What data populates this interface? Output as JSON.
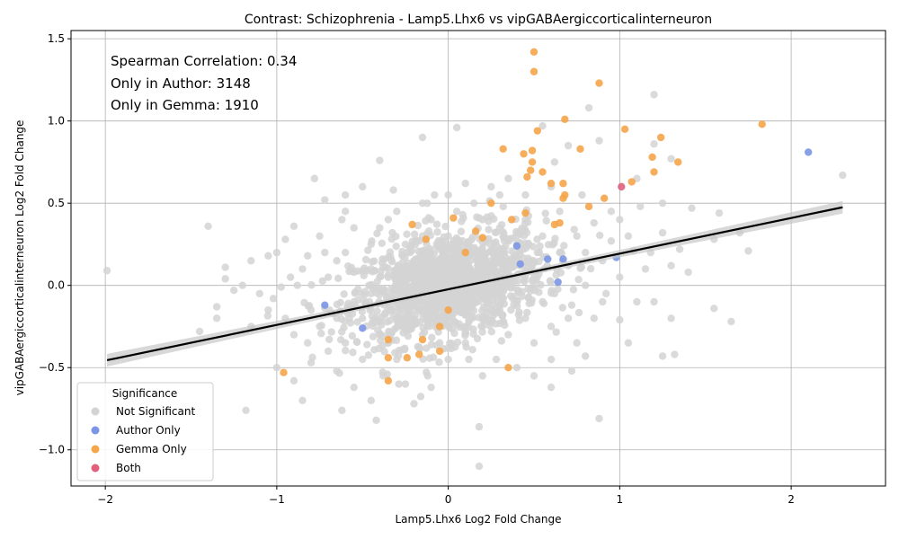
{
  "chart_data": {
    "type": "scatter",
    "title": "Contrast: Schizophrenia - Lamp5.Lhx6 vs vipGABAergiccorticalinterneuron",
    "xlabel": "Lamp5.Lhx6 Log2 Fold Change",
    "ylabel": "vipGABAergiccorticalinterneuron Log2 Fold Change",
    "xlim": [
      -2.2,
      2.55
    ],
    "ylim": [
      -1.22,
      1.55
    ],
    "xticks": [
      -2,
      -1,
      0,
      1,
      2
    ],
    "xtick_labels": [
      "−2",
      "−1",
      "0",
      "1",
      "2"
    ],
    "yticks": [
      -1.0,
      -0.5,
      0.0,
      0.5,
      1.0,
      1.5
    ],
    "ytick_labels": [
      "−1.0",
      "−0.5",
      "0.0",
      "0.5",
      "1.0",
      "1.5"
    ],
    "grid": true,
    "annotations": [
      "Spearman Correlation: 0.34",
      "Only in Author: 3148",
      "Only in Gemma: 1910"
    ],
    "regression_line": {
      "x": [
        -1.99,
        2.3
      ],
      "y": [
        -0.455,
        0.475
      ]
    },
    "legend": {
      "title": "Significance",
      "placement": "lower-left",
      "entries": [
        "Not Significant",
        "Author Only",
        "Gemma Only",
        "Both"
      ]
    },
    "series": [
      {
        "name": "Not Significant",
        "color": "#d3d3d3",
        "points": [
          [
            -1.99,
            0.09
          ],
          [
            -1.4,
            0.36
          ],
          [
            -1.45,
            -0.28
          ],
          [
            -1.3,
            0.11
          ],
          [
            -1.2,
            0.0
          ],
          [
            -1.18,
            -0.76
          ],
          [
            -1.05,
            0.18
          ],
          [
            -1.0,
            -0.5
          ],
          [
            -0.95,
            0.28
          ],
          [
            -0.9,
            0.36
          ],
          [
            -0.9,
            -0.58
          ],
          [
            -0.85,
            -0.7
          ],
          [
            -0.78,
            0.65
          ],
          [
            -0.72,
            0.52
          ],
          [
            -0.62,
            -0.76
          ],
          [
            -0.6,
            0.55
          ],
          [
            -0.4,
            0.76
          ],
          [
            -0.42,
            -0.82
          ],
          [
            -0.2,
            -0.72
          ],
          [
            -0.15,
            0.9
          ],
          [
            0.05,
            0.96
          ],
          [
            0.18,
            -0.86
          ],
          [
            0.18,
            -1.1
          ],
          [
            0.55,
            0.97
          ],
          [
            0.7,
            0.85
          ],
          [
            0.82,
            1.08
          ],
          [
            0.88,
            0.88
          ],
          [
            1.2,
            1.16
          ],
          [
            1.1,
            0.65
          ],
          [
            1.2,
            0.86
          ],
          [
            1.3,
            0.77
          ],
          [
            1.42,
            0.47
          ],
          [
            1.55,
            0.28
          ],
          [
            1.58,
            0.44
          ],
          [
            1.65,
            -0.22
          ],
          [
            1.7,
            0.32
          ],
          [
            1.75,
            0.21
          ],
          [
            1.55,
            -0.14
          ],
          [
            2.3,
            0.67
          ],
          [
            1.25,
            -0.43
          ],
          [
            1.32,
            -0.42
          ],
          [
            1.3,
            -0.2
          ],
          [
            1.0,
            -0.21
          ],
          [
            0.88,
            -0.81
          ],
          [
            0.72,
            -0.52
          ],
          [
            0.8,
            -0.43
          ],
          [
            0.6,
            -0.62
          ],
          [
            0.95,
            0.45
          ],
          [
            1.05,
            0.3
          ],
          [
            1.25,
            0.32
          ],
          [
            1.15,
            0.1
          ],
          [
            1.35,
            0.22
          ],
          [
            1.4,
            0.08
          ],
          [
            0.92,
            -0.05
          ],
          [
            1.1,
            -0.1
          ],
          [
            -1.1,
            -0.05
          ],
          [
            -1.25,
            -0.03
          ],
          [
            -1.35,
            -0.13
          ],
          [
            -0.8,
            -0.47
          ],
          [
            -0.65,
            -0.52
          ],
          [
            -0.5,
            0.6
          ],
          [
            -0.3,
            0.45
          ],
          [
            -0.25,
            -0.6
          ],
          [
            -0.1,
            -0.62
          ],
          [
            0.1,
            0.62
          ],
          [
            0.3,
            0.55
          ],
          [
            0.4,
            -0.5
          ],
          [
            0.2,
            -0.55
          ],
          [
            -0.55,
            0.35
          ],
          [
            -0.6,
            -0.35
          ],
          [
            -0.45,
            0.1
          ],
          [
            -0.35,
            -0.1
          ],
          [
            -0.25,
            0.25
          ],
          [
            -0.15,
            -0.3
          ],
          [
            -0.05,
            0.05
          ],
          [
            0.05,
            -0.15
          ],
          [
            0.15,
            0.2
          ],
          [
            0.25,
            -0.05
          ],
          [
            0.35,
            0.15
          ],
          [
            0.45,
            -0.2
          ],
          [
            0.55,
            0.3
          ],
          [
            0.6,
            -0.25
          ],
          [
            0.7,
            0.12
          ],
          [
            0.8,
            0.0
          ],
          [
            -0.7,
            0.05
          ],
          [
            -0.8,
            -0.15
          ],
          [
            -0.85,
            0.1
          ],
          [
            -0.6,
            0.2
          ],
          [
            -0.4,
            -0.3
          ],
          [
            -0.2,
            0.05
          ],
          [
            0.0,
            0.3
          ],
          [
            0.1,
            -0.35
          ],
          [
            0.3,
            0.35
          ],
          [
            0.4,
            -0.1
          ],
          [
            0.5,
            0.05
          ],
          [
            0.65,
            0.45
          ],
          [
            0.75,
            -0.35
          ],
          [
            -0.3,
            -0.45
          ],
          [
            -0.1,
            0.4
          ],
          [
            0.2,
            0.4
          ],
          [
            0.0,
            -0.45
          ],
          [
            -0.5,
            -0.2
          ],
          [
            -0.45,
            0.25
          ],
          [
            -0.3,
            0.1
          ],
          [
            -0.2,
            -0.15
          ],
          [
            -0.1,
            0.2
          ],
          [
            0.0,
            0.0
          ],
          [
            0.1,
            0.1
          ],
          [
            0.2,
            -0.2
          ],
          [
            0.3,
            0.05
          ],
          [
            0.4,
            0.25
          ],
          [
            0.5,
            -0.35
          ],
          [
            -1.0,
            0.2
          ],
          [
            -0.95,
            -0.2
          ],
          [
            -0.75,
            0.3
          ],
          [
            -0.7,
            -0.4
          ],
          [
            -0.65,
            0.15
          ],
          [
            -0.55,
            -0.1
          ],
          [
            -0.35,
            0.4
          ],
          [
            -0.25,
            -0.25
          ],
          [
            -0.15,
            0.3
          ],
          [
            -0.05,
            -0.2
          ],
          [
            0.05,
            0.25
          ],
          [
            0.15,
            -0.1
          ],
          [
            0.25,
            0.1
          ],
          [
            0.35,
            -0.3
          ],
          [
            0.45,
            0.4
          ],
          [
            0.55,
            -0.1
          ],
          [
            0.65,
            0.2
          ],
          [
            0.75,
            0.3
          ],
          [
            0.85,
            -0.2
          ],
          [
            0.9,
            0.15
          ],
          [
            1.0,
            0.05
          ],
          [
            1.05,
            -0.35
          ],
          [
            -0.4,
            0.05
          ],
          [
            -0.3,
            -0.2
          ],
          [
            -0.2,
            0.15
          ],
          [
            -0.1,
            -0.05
          ],
          [
            0.0,
            0.15
          ],
          [
            0.1,
            -0.25
          ],
          [
            0.2,
            0.05
          ],
          [
            0.3,
            -0.15
          ],
          [
            -0.5,
            -0.45
          ],
          [
            -0.4,
            0.35
          ],
          [
            0.45,
            0.55
          ],
          [
            0.6,
            0.6
          ],
          [
            0.5,
            -0.55
          ],
          [
            -0.6,
            0.45
          ],
          [
            -0.75,
            -0.25
          ],
          [
            -0.9,
            -0.3
          ],
          [
            -1.15,
            0.15
          ],
          [
            -1.3,
            0.04
          ],
          [
            -1.35,
            -0.2
          ],
          [
            -0.88,
            0.0
          ],
          [
            0.28,
            -0.45
          ],
          [
            -0.12,
            -0.55
          ],
          [
            -0.08,
            0.55
          ],
          [
            0.15,
            0.5
          ],
          [
            0.35,
            0.65
          ],
          [
            0.25,
            0.6
          ],
          [
            -0.05,
            -0.35
          ],
          [
            0.05,
            0.45
          ],
          [
            0.95,
            0.27
          ],
          [
            0.85,
            0.38
          ],
          [
            1.08,
            0.21
          ],
          [
            1.18,
            0.2
          ],
          [
            1.2,
            -0.1
          ],
          [
            0.78,
            0.55
          ],
          [
            0.62,
            0.75
          ],
          [
            -0.55,
            -0.62
          ],
          [
            -0.45,
            -0.7
          ],
          [
            -0.38,
            -0.55
          ],
          [
            -0.32,
            0.58
          ],
          [
            -0.62,
            0.4
          ],
          [
            -0.82,
            -0.35
          ],
          [
            -1.05,
            -0.15
          ],
          [
            -1.15,
            -0.25
          ],
          [
            0.6,
            -0.45
          ],
          [
            0.7,
            -0.2
          ],
          [
            0.8,
            0.2
          ],
          [
            0.9,
            -0.1
          ],
          [
            1.0,
            0.4
          ],
          [
            1.12,
            0.48
          ],
          [
            1.25,
            0.5
          ],
          [
            1.3,
            0.12
          ],
          [
            -0.15,
            0.5
          ],
          [
            0.0,
            0.55
          ],
          [
            0.12,
            -0.45
          ],
          [
            0.22,
            0.28
          ],
          [
            0.32,
            -0.22
          ],
          [
            0.42,
            0.12
          ],
          [
            0.52,
            0.2
          ],
          [
            0.62,
            -0.05
          ],
          [
            0.72,
            -0.12
          ],
          [
            -0.25,
            0.1
          ],
          [
            -0.35,
            -0.35
          ],
          [
            -0.45,
            -0.05
          ],
          [
            -0.55,
            0.08
          ],
          [
            -0.65,
            -0.2
          ],
          [
            -0.72,
            0.2
          ],
          [
            -0.82,
            0.18
          ],
          [
            -0.92,
            0.05
          ],
          [
            -1.02,
            -0.08
          ]
        ]
      },
      {
        "name": "Author Only",
        "color": "#7b96e5",
        "points": [
          [
            2.1,
            0.81
          ],
          [
            0.98,
            0.17
          ],
          [
            0.67,
            0.16
          ],
          [
            0.58,
            0.16
          ],
          [
            0.64,
            0.02
          ],
          [
            -0.72,
            -0.12
          ],
          [
            -0.5,
            -0.26
          ],
          [
            0.42,
            0.13
          ],
          [
            0.4,
            0.24
          ]
        ]
      },
      {
        "name": "Gemma Only",
        "color": "#f5a54a",
        "points": [
          [
            0.5,
            1.42
          ],
          [
            0.5,
            1.3
          ],
          [
            0.88,
            1.23
          ],
          [
            0.68,
            1.01
          ],
          [
            1.83,
            0.98
          ],
          [
            1.03,
            0.95
          ],
          [
            0.52,
            0.94
          ],
          [
            1.24,
            0.9
          ],
          [
            0.32,
            0.83
          ],
          [
            0.49,
            0.82
          ],
          [
            0.77,
            0.83
          ],
          [
            0.44,
            0.8
          ],
          [
            0.49,
            0.75
          ],
          [
            1.34,
            0.75
          ],
          [
            1.19,
            0.78
          ],
          [
            0.48,
            0.7
          ],
          [
            0.55,
            0.69
          ],
          [
            1.2,
            0.69
          ],
          [
            0.46,
            0.66
          ],
          [
            1.07,
            0.63
          ],
          [
            0.6,
            0.62
          ],
          [
            0.67,
            0.62
          ],
          [
            0.68,
            0.55
          ],
          [
            0.67,
            0.53
          ],
          [
            0.91,
            0.53
          ],
          [
            0.25,
            0.5
          ],
          [
            0.82,
            0.48
          ],
          [
            0.45,
            0.44
          ],
          [
            0.37,
            0.4
          ],
          [
            0.03,
            0.41
          ],
          [
            0.62,
            0.37
          ],
          [
            0.65,
            0.38
          ],
          [
            -0.21,
            0.37
          ],
          [
            0.16,
            0.33
          ],
          [
            0.2,
            0.29
          ],
          [
            -0.13,
            0.28
          ],
          [
            0.1,
            0.2
          ],
          [
            0.0,
            -0.15
          ],
          [
            -0.05,
            -0.25
          ],
          [
            -0.05,
            -0.4
          ],
          [
            -0.15,
            -0.33
          ],
          [
            -0.35,
            -0.33
          ],
          [
            -0.35,
            -0.44
          ],
          [
            -0.24,
            -0.44
          ],
          [
            -0.17,
            -0.42
          ],
          [
            0.35,
            -0.5
          ],
          [
            -0.96,
            -0.53
          ],
          [
            -0.35,
            -0.58
          ]
        ]
      },
      {
        "name": "Both",
        "color": "#e0607e",
        "points": [
          [
            1.01,
            0.6
          ]
        ]
      }
    ]
  }
}
